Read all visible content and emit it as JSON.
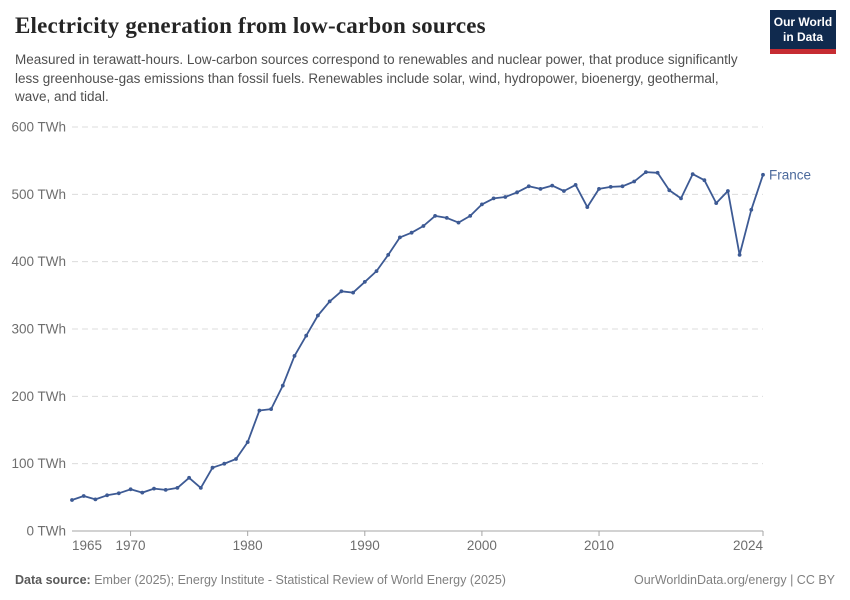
{
  "header": {
    "title": "Electricity generation from low-carbon sources",
    "subtitle": "Measured in terawatt-hours. Low-carbon sources correspond to renewables and nuclear power, that produce significantly less greenhouse-gas emissions than fossil fuels. Renewables include solar, wind, hydropower, bioenergy, geothermal, wave, and tidal."
  },
  "logo": {
    "line1": "Our World",
    "line2": "in Data",
    "bg_color": "#102a4e",
    "bar_color": "#c62c32"
  },
  "footer": {
    "datasource_label": "Data source:",
    "datasource_text": " Ember (2025); Energy Institute - Statistical Review of World Energy (2025)",
    "credit": "OurWorldinData.org/energy | CC BY"
  },
  "chart_data": {
    "type": "line",
    "title": "Electricity generation from low-carbon sources",
    "xlabel": "",
    "ylabel": "TWh",
    "xlim": [
      1965,
      2024
    ],
    "ylim": [
      0,
      600
    ],
    "grid": "horizontal-dashed",
    "legend_position": "end-of-line",
    "yticks": [
      0,
      100,
      200,
      300,
      400,
      500,
      600
    ],
    "ytick_labels": [
      "0 TWh",
      "100 TWh",
      "200 TWh",
      "300 TWh",
      "400 TWh",
      "500 TWh",
      "600 TWh"
    ],
    "xticks": [
      1965,
      1970,
      1980,
      1990,
      2000,
      2010,
      2024
    ],
    "xtick_labels": [
      "1965",
      "1970",
      "1980",
      "1990",
      "2000",
      "2010",
      "2024"
    ],
    "line_color": "#3d5a94",
    "label_color": "#4c6a9c",
    "grid_color": "#dcdcdc",
    "axis_color": "#a5a5a5",
    "tick_label_color": "#6e6e6e",
    "series": [
      {
        "name": "France",
        "x": [
          1965,
          1966,
          1967,
          1968,
          1969,
          1970,
          1971,
          1972,
          1973,
          1974,
          1975,
          1976,
          1977,
          1978,
          1979,
          1980,
          1981,
          1982,
          1983,
          1984,
          1985,
          1986,
          1987,
          1988,
          1989,
          1990,
          1991,
          1992,
          1993,
          1994,
          1995,
          1996,
          1997,
          1998,
          1999,
          2000,
          2001,
          2002,
          2003,
          2004,
          2005,
          2006,
          2007,
          2008,
          2009,
          2010,
          2011,
          2012,
          2013,
          2014,
          2015,
          2016,
          2017,
          2018,
          2019,
          2020,
          2021,
          2022,
          2023,
          2024
        ],
        "values": [
          46,
          52,
          47,
          53,
          56,
          62,
          57,
          63,
          61,
          64,
          79,
          64,
          94,
          100,
          107,
          132,
          179,
          181,
          216,
          260,
          290,
          320,
          341,
          356,
          354,
          370,
          386,
          410,
          436,
          443,
          453,
          468,
          465,
          458,
          468,
          485,
          494,
          496,
          503,
          512,
          508,
          513,
          505,
          514,
          481,
          508,
          511,
          512,
          519,
          533,
          532,
          506,
          494,
          530,
          521,
          487,
          505,
          410,
          477,
          529
        ]
      }
    ]
  }
}
